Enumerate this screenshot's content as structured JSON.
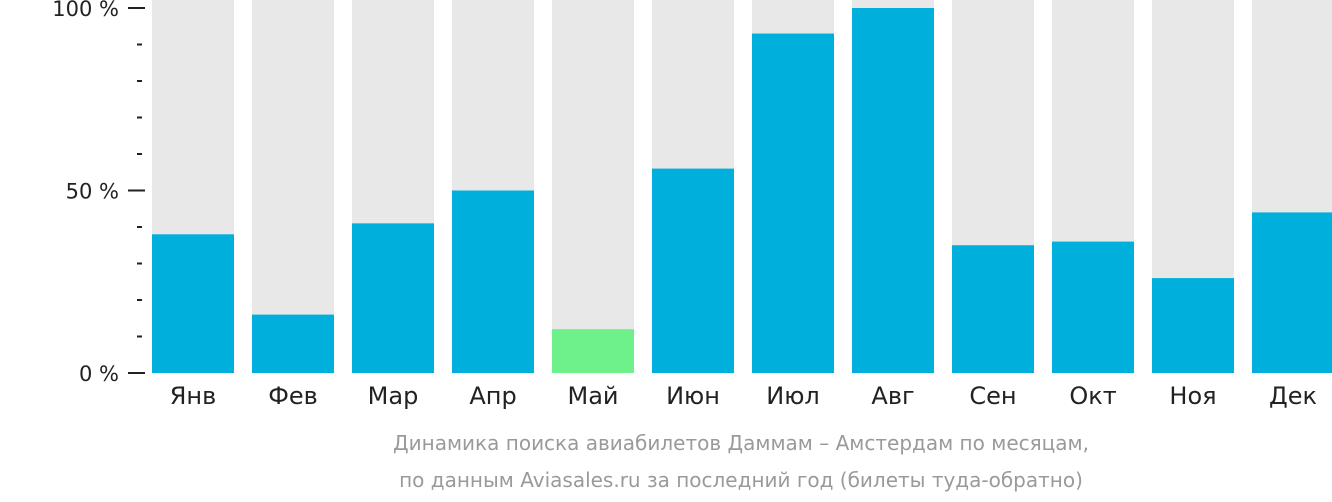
{
  "chart_data": {
    "type": "bar",
    "categories": [
      "Янв",
      "Фев",
      "Мар",
      "Апр",
      "Май",
      "Июн",
      "Июл",
      "Авг",
      "Сен",
      "Окт",
      "Ноя",
      "Дек"
    ],
    "values": [
      38,
      16,
      41,
      50,
      12,
      56,
      93,
      100,
      35,
      36,
      26,
      44
    ],
    "ylim": [
      0,
      100
    ],
    "yticks": [
      {
        "value": 0,
        "label": "0 %"
      },
      {
        "value": 50,
        "label": "50 %"
      },
      {
        "value": 100,
        "label": "100 %"
      }
    ],
    "minor_ticks_between": 4,
    "colors": {
      "bar": "#00afdc",
      "highlight": "#6ef08a",
      "background_bar": "#e8e8e8",
      "axis": "#222222"
    },
    "highlight_category": "Май",
    "caption": {
      "line1": "Динамика поиска авиабилетов Даммам – Амстердам по месяцам,",
      "line2": "по данным Aviasales.ru за последний год (билеты туда-обратно)"
    }
  }
}
